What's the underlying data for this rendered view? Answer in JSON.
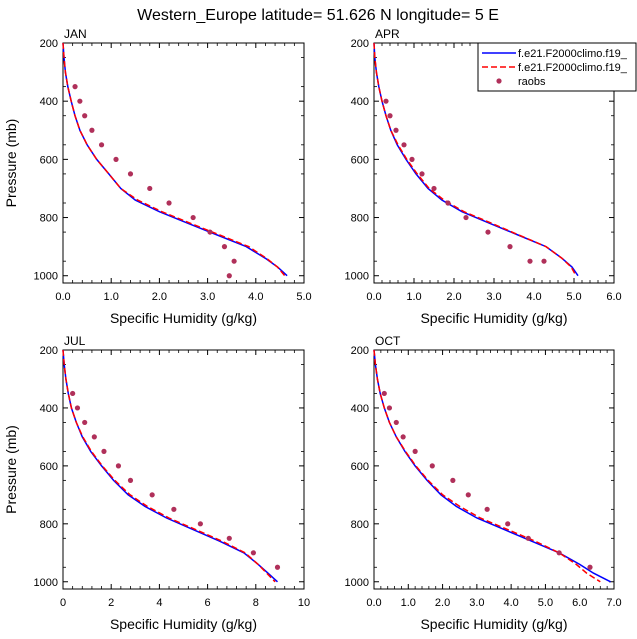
{
  "figure_title": "Western_Europe  latitude= 51.626 N longitude= 5 E",
  "legend": {
    "entries": [
      {
        "label": "f.e21.F2000climo.f19_",
        "color": "#0000ff",
        "style": "solid"
      },
      {
        "label": "f.e21.F2000climo.f19_",
        "color": "#ff0000",
        "style": "dashed"
      },
      {
        "label": "raobs",
        "color": "#b0305a",
        "style": "marker"
      }
    ]
  },
  "chart_data": [
    {
      "type": "line",
      "panel": "JAN",
      "xlabel": "Specific Humidity (g/kg)",
      "ylabel": "Pressure (mb)",
      "xlim": [
        0,
        5
      ],
      "ylim": [
        200,
        1025
      ],
      "xticks": [
        "0.0",
        "1.0",
        "2.0",
        "3.0",
        "4.0",
        "5.0"
      ],
      "yticks": [
        "200",
        "400",
        "600",
        "800",
        "1000"
      ],
      "series": [
        {
          "name": "f.e21.F2000climo.f19_",
          "color": "#0000ff",
          "style": "solid",
          "x": [
            0.0,
            0.02,
            0.05,
            0.1,
            0.17,
            0.25,
            0.35,
            0.5,
            0.7,
            0.95,
            1.2,
            1.5,
            2.0,
            2.6,
            3.2,
            3.8,
            4.2,
            4.45,
            4.65
          ],
          "y": [
            200,
            250,
            300,
            350,
            400,
            450,
            500,
            550,
            600,
            650,
            700,
            740,
            780,
            820,
            860,
            900,
            940,
            970,
            1000
          ]
        },
        {
          "name": "f.e21.F2000climo.f19_",
          "color": "#ff0000",
          "style": "dashed",
          "x": [
            0.0,
            0.02,
            0.05,
            0.1,
            0.17,
            0.25,
            0.35,
            0.5,
            0.7,
            0.95,
            1.2,
            1.55,
            2.05,
            2.65,
            3.25,
            3.85,
            4.22,
            4.45,
            4.6
          ],
          "y": [
            200,
            250,
            300,
            350,
            400,
            450,
            500,
            550,
            600,
            650,
            700,
            740,
            780,
            820,
            860,
            900,
            940,
            970,
            1000
          ]
        }
      ],
      "raobs": {
        "x": [
          0.25,
          0.35,
          0.45,
          0.6,
          0.8,
          1.1,
          1.4,
          1.8,
          2.2,
          2.7,
          3.05,
          3.35,
          3.55,
          3.45
        ],
        "y": [
          350,
          400,
          450,
          500,
          550,
          600,
          650,
          700,
          750,
          800,
          850,
          900,
          950,
          1000
        ]
      }
    },
    {
      "type": "line",
      "panel": "APR",
      "xlabel": "Specific Humidity (g/kg)",
      "ylabel": "",
      "xlim": [
        0,
        6
      ],
      "ylim": [
        200,
        1025
      ],
      "xticks": [
        "0.0",
        "1.0",
        "2.0",
        "3.0",
        "4.0",
        "5.0",
        "6.0"
      ],
      "yticks": [
        "200",
        "400",
        "600",
        "800",
        "1000"
      ],
      "series": [
        {
          "name": "f.e21.F2000climo.f19_",
          "color": "#0000ff",
          "style": "solid",
          "x": [
            0.0,
            0.02,
            0.06,
            0.12,
            0.2,
            0.3,
            0.42,
            0.58,
            0.8,
            1.05,
            1.35,
            1.7,
            2.2,
            2.9,
            3.6,
            4.3,
            4.7,
            4.95,
            5.1
          ],
          "y": [
            200,
            250,
            300,
            350,
            400,
            450,
            500,
            550,
            600,
            650,
            700,
            740,
            780,
            820,
            860,
            900,
            940,
            970,
            1000
          ]
        },
        {
          "name": "f.e21.F2000climo.f19_",
          "color": "#ff0000",
          "style": "dashed",
          "x": [
            0.0,
            0.02,
            0.06,
            0.12,
            0.2,
            0.3,
            0.42,
            0.6,
            0.82,
            1.08,
            1.38,
            1.75,
            2.25,
            2.95,
            3.62,
            4.3,
            4.7,
            4.93,
            5.05
          ],
          "y": [
            200,
            250,
            300,
            350,
            400,
            450,
            500,
            550,
            600,
            650,
            700,
            740,
            780,
            820,
            860,
            900,
            940,
            970,
            1000
          ]
        }
      ],
      "raobs": {
        "x": [
          0.3,
          0.4,
          0.55,
          0.75,
          0.95,
          1.2,
          1.5,
          1.85,
          2.3,
          2.85,
          3.4,
          3.9,
          4.25
        ],
        "y": [
          400,
          450,
          500,
          550,
          600,
          650,
          700,
          750,
          800,
          850,
          900,
          950,
          950
        ]
      }
    },
    {
      "type": "line",
      "panel": "JUL",
      "xlabel": "Specific Humidity (g/kg)",
      "ylabel": "Pressure (mb)",
      "xlim": [
        0,
        10
      ],
      "ylim": [
        200,
        1025
      ],
      "xticks": [
        "0",
        "2",
        "4",
        "6",
        "8",
        "10"
      ],
      "yticks": [
        "200",
        "400",
        "600",
        "800",
        "1000"
      ],
      "series": [
        {
          "name": "f.e21.F2000climo.f19_",
          "color": "#0000ff",
          "style": "solid",
          "x": [
            0.0,
            0.05,
            0.12,
            0.22,
            0.35,
            0.55,
            0.8,
            1.15,
            1.6,
            2.1,
            2.7,
            3.4,
            4.3,
            5.4,
            6.5,
            7.5,
            8.1,
            8.5,
            8.9
          ],
          "y": [
            200,
            250,
            300,
            350,
            400,
            450,
            500,
            550,
            600,
            650,
            700,
            740,
            780,
            820,
            860,
            900,
            940,
            970,
            1000
          ]
        },
        {
          "name": "f.e21.F2000climo.f19_",
          "color": "#ff0000",
          "style": "dashed",
          "x": [
            0.0,
            0.05,
            0.12,
            0.22,
            0.35,
            0.55,
            0.82,
            1.18,
            1.63,
            2.15,
            2.78,
            3.5,
            4.4,
            5.5,
            6.6,
            7.55,
            8.1,
            8.45,
            8.8
          ],
          "y": [
            200,
            250,
            300,
            350,
            400,
            450,
            500,
            550,
            600,
            650,
            700,
            740,
            780,
            820,
            860,
            900,
            940,
            970,
            1000
          ]
        }
      ],
      "raobs": {
        "x": [
          0.4,
          0.6,
          0.9,
          1.3,
          1.7,
          2.3,
          2.8,
          3.7,
          4.6,
          5.7,
          6.9,
          7.9,
          8.9
        ],
        "y": [
          350,
          400,
          450,
          500,
          550,
          600,
          650,
          700,
          750,
          800,
          850,
          900,
          950
        ]
      }
    },
    {
      "type": "line",
      "panel": "OCT",
      "xlabel": "Specific Humidity (g/kg)",
      "ylabel": "",
      "xlim": [
        0,
        7
      ],
      "ylim": [
        200,
        1025
      ],
      "xticks": [
        "0.0",
        "1.0",
        "2.0",
        "3.0",
        "4.0",
        "5.0",
        "6.0",
        "7.0"
      ],
      "yticks": [
        "200",
        "400",
        "600",
        "800",
        "1000"
      ],
      "series": [
        {
          "name": "f.e21.F2000climo.f19_",
          "color": "#0000ff",
          "style": "solid",
          "x": [
            0.0,
            0.04,
            0.1,
            0.18,
            0.3,
            0.45,
            0.65,
            0.9,
            1.2,
            1.55,
            1.95,
            2.4,
            3.0,
            3.8,
            4.6,
            5.4,
            6.0,
            6.4,
            6.9
          ],
          "y": [
            200,
            250,
            300,
            350,
            400,
            450,
            500,
            550,
            600,
            650,
            700,
            740,
            780,
            820,
            860,
            900,
            940,
            970,
            1000
          ]
        },
        {
          "name": "f.e21.F2000climo.f19_",
          "color": "#ff0000",
          "style": "dashed",
          "x": [
            0.0,
            0.04,
            0.1,
            0.18,
            0.3,
            0.45,
            0.65,
            0.92,
            1.22,
            1.58,
            2.0,
            2.5,
            3.1,
            3.9,
            4.7,
            5.4,
            5.9,
            6.2,
            6.6
          ],
          "y": [
            200,
            250,
            300,
            350,
            400,
            450,
            500,
            550,
            600,
            650,
            700,
            740,
            780,
            820,
            860,
            900,
            940,
            970,
            1000
          ]
        }
      ],
      "raobs": {
        "x": [
          0.3,
          0.45,
          0.65,
          0.85,
          1.2,
          1.7,
          2.3,
          2.75,
          3.3,
          3.9,
          4.5,
          5.4,
          6.3
        ],
        "y": [
          350,
          400,
          450,
          500,
          550,
          600,
          650,
          700,
          750,
          800,
          850,
          900,
          950
        ]
      }
    }
  ]
}
